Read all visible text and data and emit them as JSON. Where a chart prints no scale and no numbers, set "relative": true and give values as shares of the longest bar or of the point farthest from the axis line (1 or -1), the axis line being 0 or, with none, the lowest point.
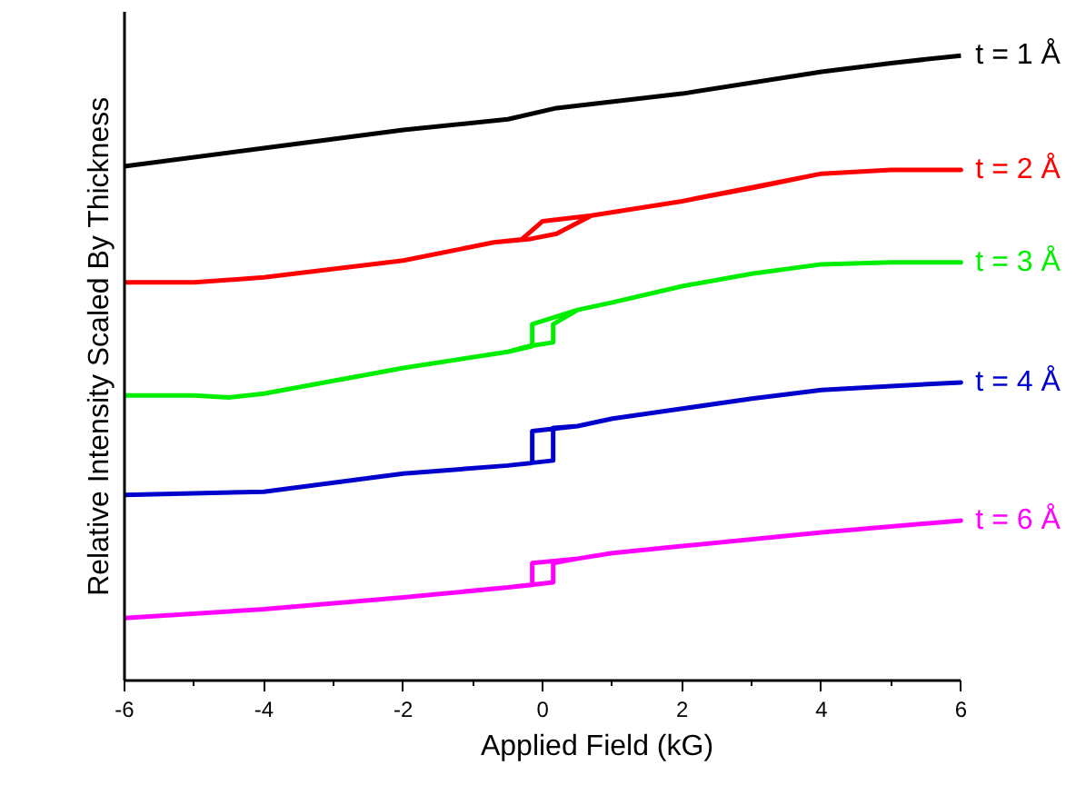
{
  "chart_data": {
    "type": "line",
    "relative": true,
    "xlabel": "Applied Field (kG)",
    "ylabel": "Relative Intensity Scaled By Thickness",
    "xlim": [
      -6,
      6
    ],
    "xticks": [
      -6,
      -4,
      -2,
      0,
      2,
      4,
      6
    ],
    "grid": false,
    "legend": false,
    "line_style": "solid",
    "marker": "none",
    "series": [
      {
        "name": "t = 1 Å",
        "color": "#000000",
        "x": [
          -6,
          -4,
          -2,
          -0.5,
          0.2,
          2,
          4,
          5,
          6
        ],
        "values": [
          0.823,
          0.852,
          0.881,
          0.898,
          0.916,
          0.939,
          0.974,
          0.988,
          1.0
        ]
      },
      {
        "name": "t = 2 Å",
        "color": "#ff0000",
        "x": [
          -6,
          -5,
          -4,
          -2,
          -0.7,
          -0.2,
          0.2,
          0.7,
          2,
          3,
          4,
          5,
          6,
          5,
          4,
          2,
          0.7,
          0,
          -0.3,
          -0.7
        ],
        "values": [
          0.637,
          0.637,
          0.645,
          0.672,
          0.701,
          0.706,
          0.715,
          0.744,
          0.767,
          0.788,
          0.811,
          0.817,
          0.817,
          0.817,
          0.811,
          0.767,
          0.744,
          0.735,
          0.706,
          0.701
        ]
      },
      {
        "name": "t = 3 Å",
        "color": "#00ee00",
        "x": [
          -6,
          -5,
          -4.5,
          -4,
          -2,
          -0.5,
          -0.2,
          0.15,
          0.15,
          0.5,
          1,
          2,
          3,
          4,
          5,
          6,
          5,
          4,
          3,
          2,
          1,
          0.5,
          -0.15,
          -0.15,
          -0.5
        ],
        "values": [
          0.456,
          0.456,
          0.453,
          0.459,
          0.5,
          0.526,
          0.535,
          0.541,
          0.57,
          0.593,
          0.605,
          0.631,
          0.651,
          0.666,
          0.669,
          0.669,
          0.669,
          0.666,
          0.651,
          0.631,
          0.605,
          0.593,
          0.57,
          0.535,
          0.526
        ]
      },
      {
        "name": "t = 4 Å",
        "color": "#0000cc",
        "x": [
          -6,
          -4,
          -2,
          -0.5,
          0.15,
          0.15,
          0.5,
          1,
          2,
          3,
          4,
          5,
          6,
          5,
          4,
          3,
          2,
          1,
          0.5,
          -0.15,
          -0.15,
          -0.5
        ],
        "values": [
          0.297,
          0.302,
          0.331,
          0.344,
          0.352,
          0.404,
          0.407,
          0.419,
          0.435,
          0.451,
          0.465,
          0.471,
          0.477,
          0.471,
          0.465,
          0.451,
          0.435,
          0.419,
          0.407,
          0.399,
          0.348,
          0.344
        ]
      },
      {
        "name": "t = 6 Å",
        "color": "#ff00ff",
        "x": [
          -6,
          -4,
          -2,
          -0.5,
          0.15,
          0.15,
          0.5,
          1,
          2,
          4,
          6,
          4,
          2,
          1,
          0.5,
          -0.15,
          -0.15,
          -0.5
        ],
        "values": [
          0.1,
          0.114,
          0.133,
          0.149,
          0.157,
          0.188,
          0.195,
          0.204,
          0.215,
          0.237,
          0.256,
          0.237,
          0.215,
          0.204,
          0.195,
          0.188,
          0.153,
          0.149
        ]
      }
    ]
  }
}
